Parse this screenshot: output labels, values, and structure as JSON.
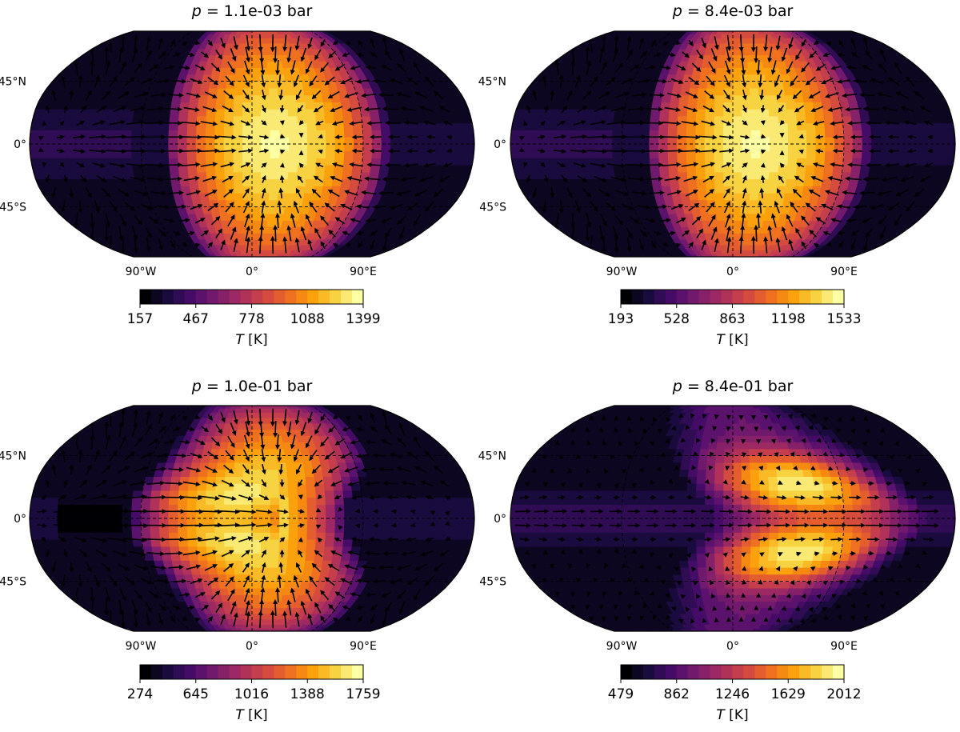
{
  "figure": {
    "colormap": [
      "#000004",
      "#1b0c41",
      "#4a0c6b",
      "#781c6d",
      "#a52c60",
      "#cf4446",
      "#ed6925",
      "#fb9b06",
      "#f7d13d",
      "#fcffa4"
    ]
  },
  "chart_data": [
    {
      "type": "heatmap",
      "projection": "robinson",
      "title": "p = 1.1e-03 bar",
      "title_var": "p",
      "title_rest": " = 1.1e-03 bar",
      "level": "upper",
      "lat_labels": [
        "45°N",
        "0°",
        "45°S"
      ],
      "lon_labels": [
        "90°W",
        "0°",
        "90°E"
      ],
      "colorbar": {
        "label_var": "T",
        "label_unit": " [K]",
        "ticks": [
          "157",
          "467",
          "778",
          "1088",
          "1399"
        ],
        "range": [
          157,
          1399
        ],
        "levels": 20
      }
    },
    {
      "type": "heatmap",
      "projection": "robinson",
      "title": "p = 8.4e-03 bar",
      "title_var": "p",
      "title_rest": " = 8.4e-03 bar",
      "level": "upper",
      "lat_labels": [
        "45°N",
        "0°",
        "45°S"
      ],
      "lon_labels": [
        "90°W",
        "0°",
        "90°E"
      ],
      "colorbar": {
        "label_var": "T",
        "label_unit": " [K]",
        "ticks": [
          "193",
          "528",
          "863",
          "1198",
          "1533"
        ],
        "range": [
          193,
          1533
        ],
        "levels": 20
      }
    },
    {
      "type": "heatmap",
      "projection": "robinson",
      "title": "p = 1.0e-01 bar",
      "title_var": "p",
      "title_rest": " = 1.0e-01 bar",
      "level": "mid",
      "lat_labels": [
        "45°N",
        "0°",
        "45°S"
      ],
      "lon_labels": [
        "90°W",
        "0°",
        "90°E"
      ],
      "colorbar": {
        "label_var": "T",
        "label_unit": " [K]",
        "ticks": [
          "274",
          "645",
          "1016",
          "1388",
          "1759"
        ],
        "range": [
          274,
          1759
        ],
        "levels": 20
      }
    },
    {
      "type": "heatmap",
      "projection": "robinson",
      "title": "p = 8.4e-01 bar",
      "title_var": "p",
      "title_rest": " = 8.4e-01 bar",
      "level": "deep",
      "lat_labels": [
        "45°N",
        "0°",
        "45°S"
      ],
      "lon_labels": [
        "90°W",
        "0°",
        "90°E"
      ],
      "colorbar": {
        "label_var": "T",
        "label_unit": " [K]",
        "ticks": [
          "479",
          "862",
          "1246",
          "1629",
          "2012"
        ],
        "range": [
          479,
          2012
        ],
        "levels": 20
      }
    }
  ]
}
